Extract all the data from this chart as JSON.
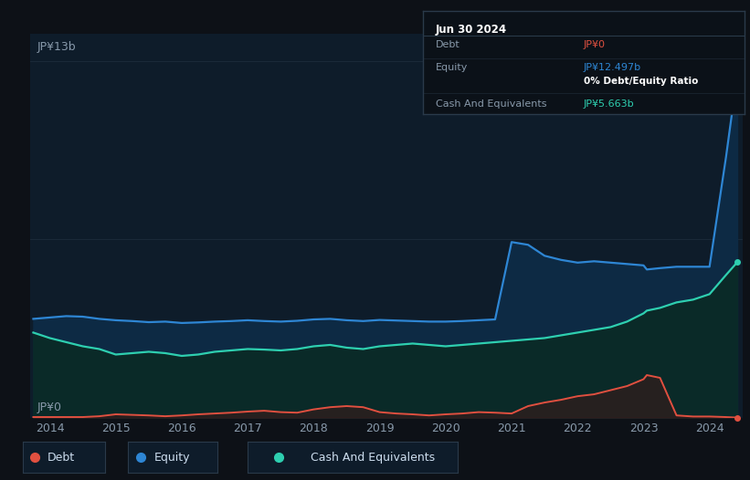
{
  "bg_color": "#0d1117",
  "plot_bg_color": "#0e1c2a",
  "grid_color": "#1e2d3d",
  "title_label": "JP¥13b",
  "zero_label": "JP¥0",
  "x_ticks": [
    2014,
    2015,
    2016,
    2017,
    2018,
    2019,
    2020,
    2021,
    2022,
    2023,
    2024
  ],
  "debt_color": "#e05040",
  "equity_color": "#2e86d4",
  "cash_color": "#2ecfb0",
  "fill_equity_color": "#0d2a44",
  "fill_cash_color": "#0a2a28",
  "fill_debt_color": "#3a1a1a",
  "years": [
    2013.75,
    2014.0,
    2014.25,
    2014.5,
    2014.75,
    2015.0,
    2015.25,
    2015.5,
    2015.75,
    2016.0,
    2016.25,
    2016.5,
    2016.75,
    2017.0,
    2017.25,
    2017.5,
    2017.75,
    2018.0,
    2018.25,
    2018.5,
    2018.75,
    2019.0,
    2019.25,
    2019.5,
    2019.75,
    2020.0,
    2020.25,
    2020.5,
    2020.75,
    2021.0,
    2021.25,
    2021.5,
    2021.75,
    2022.0,
    2022.25,
    2022.5,
    2022.75,
    2023.0,
    2023.05,
    2023.25,
    2023.5,
    2023.75,
    2024.0,
    2024.25,
    2024.42
  ],
  "equity": [
    3.6,
    3.65,
    3.7,
    3.68,
    3.6,
    3.55,
    3.52,
    3.48,
    3.5,
    3.45,
    3.47,
    3.5,
    3.52,
    3.55,
    3.52,
    3.5,
    3.53,
    3.58,
    3.6,
    3.55,
    3.52,
    3.56,
    3.54,
    3.52,
    3.5,
    3.5,
    3.52,
    3.55,
    3.58,
    6.4,
    6.3,
    5.9,
    5.75,
    5.65,
    5.7,
    5.65,
    5.6,
    5.55,
    5.4,
    5.45,
    5.5,
    5.5,
    5.5,
    9.5,
    12.5
  ],
  "cash": [
    3.1,
    2.9,
    2.75,
    2.6,
    2.5,
    2.3,
    2.35,
    2.4,
    2.35,
    2.25,
    2.3,
    2.4,
    2.45,
    2.5,
    2.48,
    2.45,
    2.5,
    2.6,
    2.65,
    2.55,
    2.5,
    2.6,
    2.65,
    2.7,
    2.65,
    2.6,
    2.65,
    2.7,
    2.75,
    2.8,
    2.85,
    2.9,
    3.0,
    3.1,
    3.2,
    3.3,
    3.5,
    3.8,
    3.9,
    4.0,
    4.2,
    4.3,
    4.5,
    5.2,
    5.663
  ],
  "debt": [
    0.02,
    0.02,
    0.02,
    0.02,
    0.05,
    0.12,
    0.1,
    0.08,
    0.05,
    0.08,
    0.12,
    0.15,
    0.18,
    0.22,
    0.25,
    0.2,
    0.18,
    0.3,
    0.38,
    0.42,
    0.38,
    0.2,
    0.15,
    0.12,
    0.08,
    0.12,
    0.15,
    0.2,
    0.18,
    0.15,
    0.42,
    0.55,
    0.65,
    0.78,
    0.85,
    1.0,
    1.15,
    1.4,
    1.55,
    1.45,
    0.08,
    0.04,
    0.04,
    0.02,
    0.0
  ],
  "ylim": [
    0,
    14
  ],
  "xlim": [
    2013.7,
    2024.5
  ],
  "tooltip_date": "Jun 30 2024",
  "tooltip_debt_label": "Debt",
  "tooltip_debt_value": "JP¥0",
  "tooltip_equity_label": "Equity",
  "tooltip_equity_value": "JP¥12.497b",
  "tooltip_ratio": "0% Debt/Equity Ratio",
  "tooltip_cash_label": "Cash And Equivalents",
  "tooltip_cash_value": "JP¥5.663b",
  "legend_debt": "Debt",
  "legend_equity": "Equity",
  "legend_cash": "Cash And Equivalents"
}
